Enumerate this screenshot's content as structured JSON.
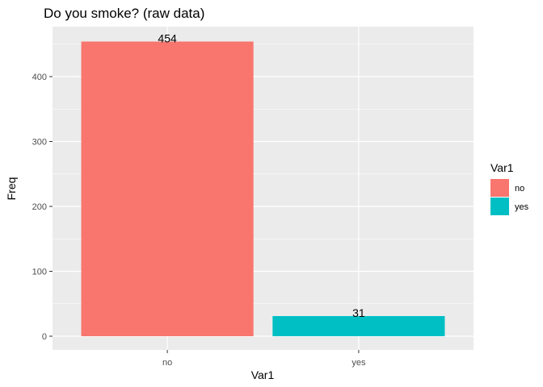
{
  "chart_data": {
    "type": "bar",
    "title": "Do you smoke? (raw data)",
    "xlabel": "Var1",
    "ylabel": "Freq",
    "categories": [
      "no",
      "yes"
    ],
    "values": [
      454,
      31
    ],
    "data_labels": [
      "454",
      "31"
    ],
    "colors": [
      "#F8766D",
      "#00BFC4"
    ],
    "ylim": [
      0,
      475
    ],
    "yticks": [
      0,
      100,
      200,
      300,
      400
    ],
    "ytick_labels": [
      "0",
      "100",
      "200",
      "300",
      "400"
    ],
    "grid": true,
    "panel_background": "#EBEBEB",
    "legend": {
      "title": "Var1",
      "position": "right",
      "items": [
        {
          "label": "no",
          "color": "#F8766D"
        },
        {
          "label": "yes",
          "color": "#00BFC4"
        }
      ]
    }
  }
}
